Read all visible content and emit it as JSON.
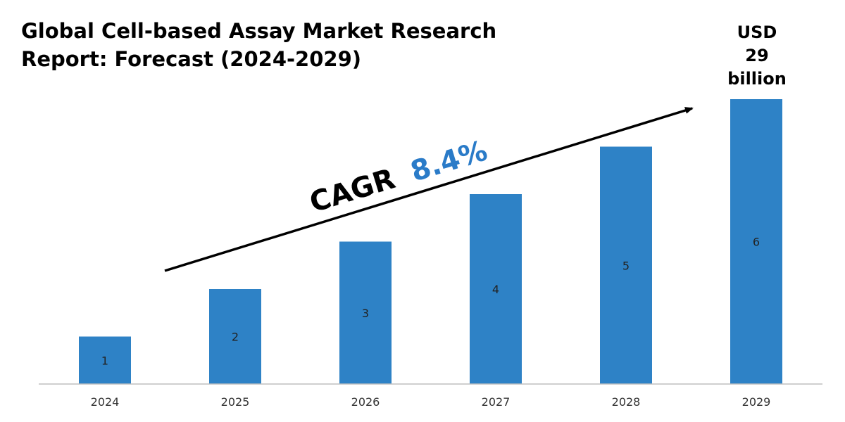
{
  "colors": {
    "bar": "#2e82c6",
    "cagr_value": "#2a7bc8",
    "text": "#000000",
    "axis": "#bfbfbf"
  },
  "title_lines": [
    "Global Cell-based Assay Market Research",
    "Report: Forecast (2024-2029)"
  ],
  "headline_lines": [
    "USD",
    "29",
    "billion"
  ],
  "cagr": {
    "label": "CAGR",
    "value": "8.4%"
  },
  "chart_data": {
    "type": "bar",
    "title": "Global Cell-based Assay Market Research Report: Forecast (2024-2029)",
    "categories": [
      "2024",
      "2025",
      "2026",
      "2027",
      "2028",
      "2029"
    ],
    "values": [
      1,
      2,
      3,
      4,
      5,
      6
    ],
    "data_labels": [
      "1",
      "2",
      "3",
      "4",
      "5",
      "6"
    ],
    "xlabel": "",
    "ylabel": "",
    "ylim": [
      0,
      6
    ],
    "grid": false,
    "legend": "none",
    "annotations": [
      "CAGR 8.4%",
      "USD 29 billion"
    ]
  }
}
